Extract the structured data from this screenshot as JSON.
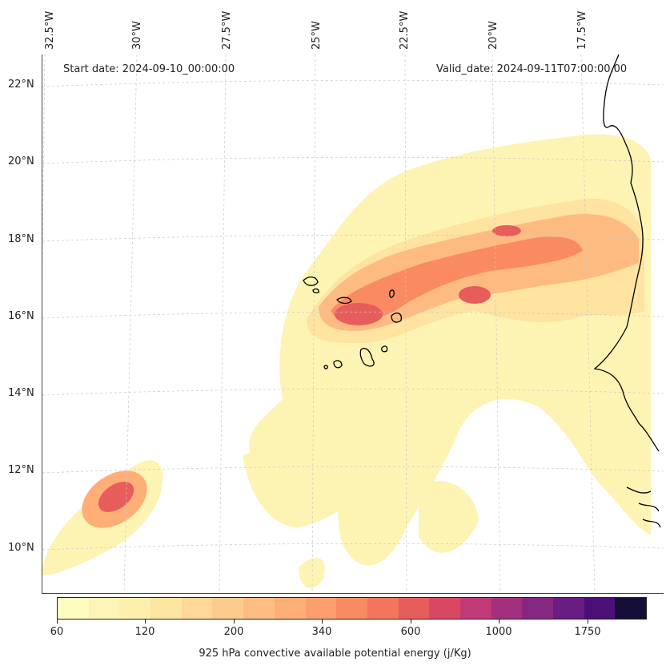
{
  "map": {
    "start_date_text": "Start date: 2024-09-10_00:00:00",
    "valid_date_text": "Valid_date: 2024-09-11T07:00:00.00",
    "longitude_labels": [
      "32.5°W",
      "30°W",
      "27.5°W",
      "25°W",
      "22.5°W",
      "20°W",
      "17.5°W"
    ],
    "latitude_labels": [
      "22°N",
      "20°N",
      "18°N",
      "16°N",
      "14°N",
      "12°N",
      "10°N"
    ],
    "field": "925 hPa convective available potential energy",
    "coastline_color": "#000000",
    "gridline_color": "#cccccc"
  },
  "colorbar": {
    "title": "925 hPa convective available potential energy (j/Kg)",
    "tick_labels": [
      "60",
      "120",
      "200",
      "340",
      "600",
      "1000",
      "1750"
    ],
    "colors": [
      "#fcfdbf",
      "#fcf5b6",
      "#fdefae",
      "#fde5a2",
      "#fed799",
      "#fecb8f",
      "#febd82",
      "#feae77",
      "#fc9d6d",
      "#fa8a62",
      "#f3755c",
      "#e75d5b",
      "#d84862",
      "#c03a76",
      "#a3307e",
      "#862781",
      "#681d80",
      "#4a1077",
      "#140e36"
    ]
  }
}
